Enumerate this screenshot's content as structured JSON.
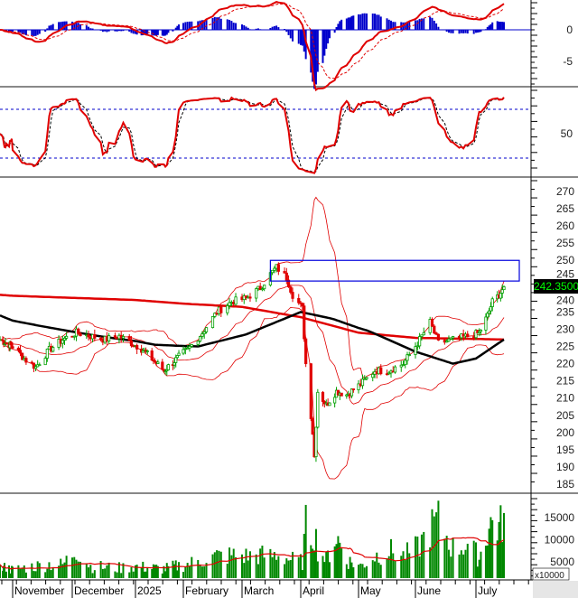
{
  "chart_data": [
    {
      "type": "line",
      "panel": "MACD",
      "yticks": [
        0,
        -5
      ],
      "series_colors": {
        "macd": "#e00000",
        "signal": "#e00000",
        "histogram": "#0000cc"
      }
    },
    {
      "type": "line",
      "panel": "Stochastic",
      "yticks": [
        50
      ],
      "levels": [
        80,
        20
      ],
      "series_colors": {
        "k": "#e00000",
        "d": "#000000",
        "levels": "#0000cc"
      }
    },
    {
      "type": "candlestick",
      "panel": "Price",
      "yticks": [
        270,
        265,
        260,
        255,
        250,
        245,
        240,
        235,
        230,
        225,
        220,
        215,
        210,
        205,
        200,
        195,
        190,
        185
      ],
      "ylim": [
        185,
        270
      ],
      "last_price_label": "242.3500",
      "resistance_zone": {
        "from": "2025-03-17",
        "low": 244,
        "high": 250
      },
      "close": {
        "dates": [
          "2024-10-18",
          "2024-10-25",
          "2024-11-01",
          "2024-11-08",
          "2024-11-13",
          "2024-11-20",
          "2024-11-27",
          "2024-12-04",
          "2024-12-11",
          "2024-12-18",
          "2024-12-25",
          "2024-12-31",
          "2025-01-07",
          "2025-01-14",
          "2025-01-21",
          "2025-02-05",
          "2025-02-12",
          "2025-02-19",
          "2025-02-26",
          "2025-03-05",
          "2025-03-12",
          "2025-03-17",
          "2025-03-20",
          "2025-03-25",
          "2025-03-28",
          "2025-04-02",
          "2025-04-04",
          "2025-04-08",
          "2025-04-09",
          "2025-04-11",
          "2025-04-16",
          "2025-04-22",
          "2025-04-28",
          "2025-05-06",
          "2025-05-13",
          "2025-05-20",
          "2025-05-27",
          "2025-06-03",
          "2025-06-09",
          "2025-06-13",
          "2025-06-20",
          "2025-06-27",
          "2025-07-03",
          "2025-07-08",
          "2025-07-11",
          "2025-07-15",
          "2025-07-18"
        ],
        "values": [
          227,
          226,
          225,
          221,
          219,
          224,
          227,
          229,
          228,
          227,
          228,
          226,
          224,
          221,
          218,
          224,
          229,
          235,
          238,
          239,
          242,
          246,
          248,
          245,
          240,
          236,
          220,
          200,
          193,
          212,
          208,
          212,
          211,
          214,
          218,
          218,
          220,
          226,
          232,
          226,
          227,
          228,
          229,
          234,
          238,
          240,
          242.35
        ]
      },
      "ma_long": {
        "color": "#e00000",
        "dates": [
          "2024-10-18",
          "2025-01-02",
          "2025-03-03",
          "2025-04-01",
          "2025-05-05",
          "2025-06-02",
          "2025-07-18"
        ],
        "values": [
          240,
          238.5,
          236.5,
          233.5,
          229,
          227.5,
          227
        ]
      },
      "ma_mid": {
        "color": "#000000",
        "dates": [
          "2024-10-18",
          "2024-11-15",
          "2024-12-15",
          "2025-01-15",
          "2025-02-10",
          "2025-03-05",
          "2025-04-01",
          "2025-04-20",
          "2025-05-10",
          "2025-06-02",
          "2025-06-20",
          "2025-07-01",
          "2025-07-18"
        ],
        "values": [
          234,
          231,
          228,
          225.5,
          225,
          228.5,
          235,
          233,
          229.5,
          223.5,
          220,
          221.5,
          227
        ]
      }
    },
    {
      "type": "bar",
      "panel": "Volume",
      "unit_label": "x10000",
      "yticks": [
        15000,
        10000,
        5000
      ],
      "colors": {
        "bars": "#008800",
        "ma": "#e00000"
      },
      "dates": [
        "2024-10-18",
        "2024-10-25",
        "2024-11-01",
        "2024-11-08",
        "2024-11-13",
        "2024-11-20",
        "2024-11-27",
        "2024-12-04",
        "2024-12-11",
        "2024-12-18",
        "2024-12-25",
        "2024-12-31",
        "2025-01-07",
        "2025-01-14",
        "2025-01-21",
        "2025-02-05",
        "2025-02-12",
        "2025-02-19",
        "2025-02-26",
        "2025-03-05",
        "2025-03-12",
        "2025-03-17",
        "2025-03-20",
        "2025-03-25",
        "2025-03-28",
        "2025-04-02",
        "2025-04-04",
        "2025-04-08",
        "2025-04-09",
        "2025-04-11",
        "2025-04-16",
        "2025-04-22",
        "2025-04-28",
        "2025-05-06",
        "2025-05-13",
        "2025-05-20",
        "2025-05-27",
        "2025-06-03",
        "2025-06-09",
        "2025-06-13",
        "2025-06-20",
        "2025-06-27",
        "2025-07-03",
        "2025-07-08",
        "2025-07-11",
        "2025-07-15",
        "2025-07-18"
      ],
      "values": [
        4000,
        4000,
        3500,
        4200,
        4500,
        5000,
        4800,
        8600,
        4500,
        4200,
        4000,
        4500,
        4200,
        4000,
        3800,
        5000,
        6000,
        7000,
        7200,
        7000,
        7300,
        7000,
        7500,
        6500,
        6000,
        5500,
        14500,
        12500,
        13500,
        9000,
        6000,
        12000,
        6000,
        4500,
        7000,
        8500,
        7000,
        9000,
        14000,
        15800,
        9000,
        10000,
        6500,
        13300,
        15800,
        14000,
        16200
      ]
    }
  ],
  "x_axis": {
    "labels": [
      "November",
      "December",
      "2025",
      "February",
      "March",
      "April",
      "May",
      "June",
      "July"
    ]
  }
}
